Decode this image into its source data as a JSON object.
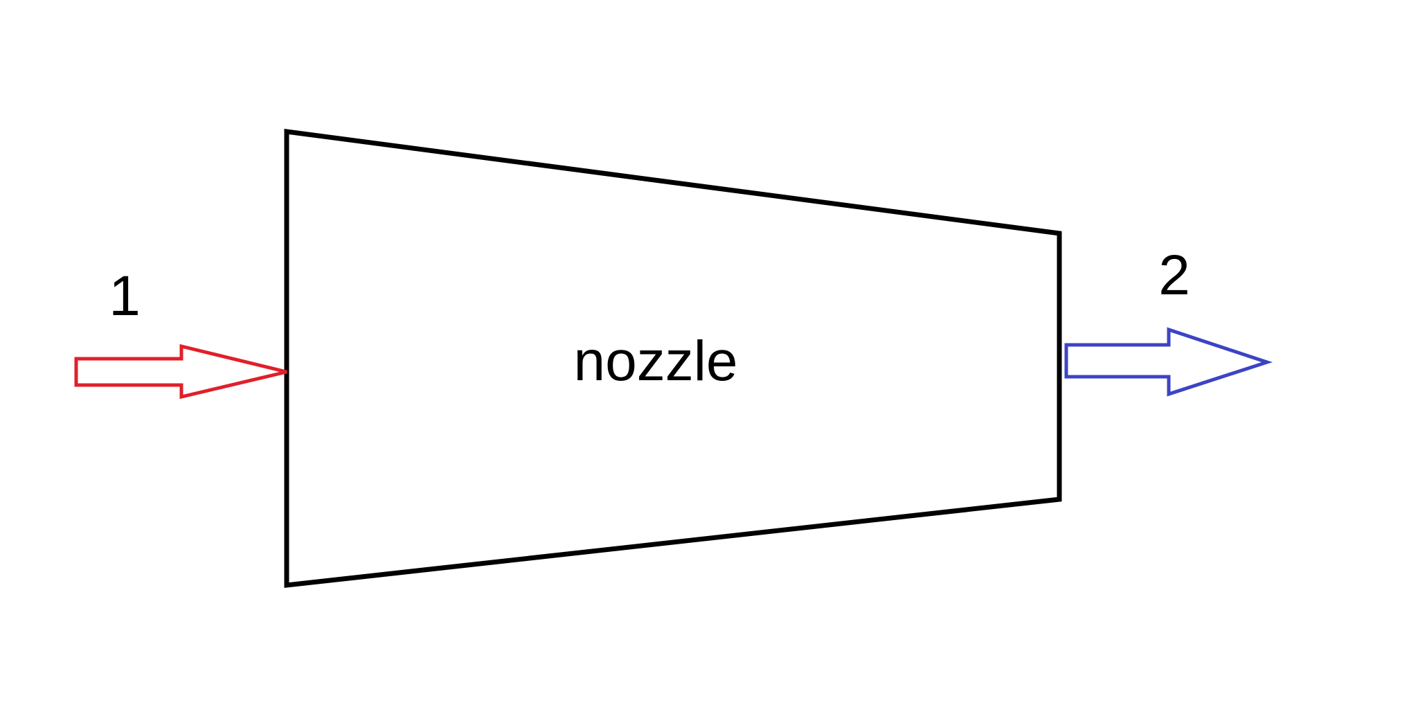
{
  "diagram": {
    "title": "nozzle",
    "inlet": {
      "label": "1",
      "color": "#e0202a"
    },
    "outlet": {
      "label": "2",
      "color": "#3c44c4"
    },
    "outline_color": "#000000"
  }
}
